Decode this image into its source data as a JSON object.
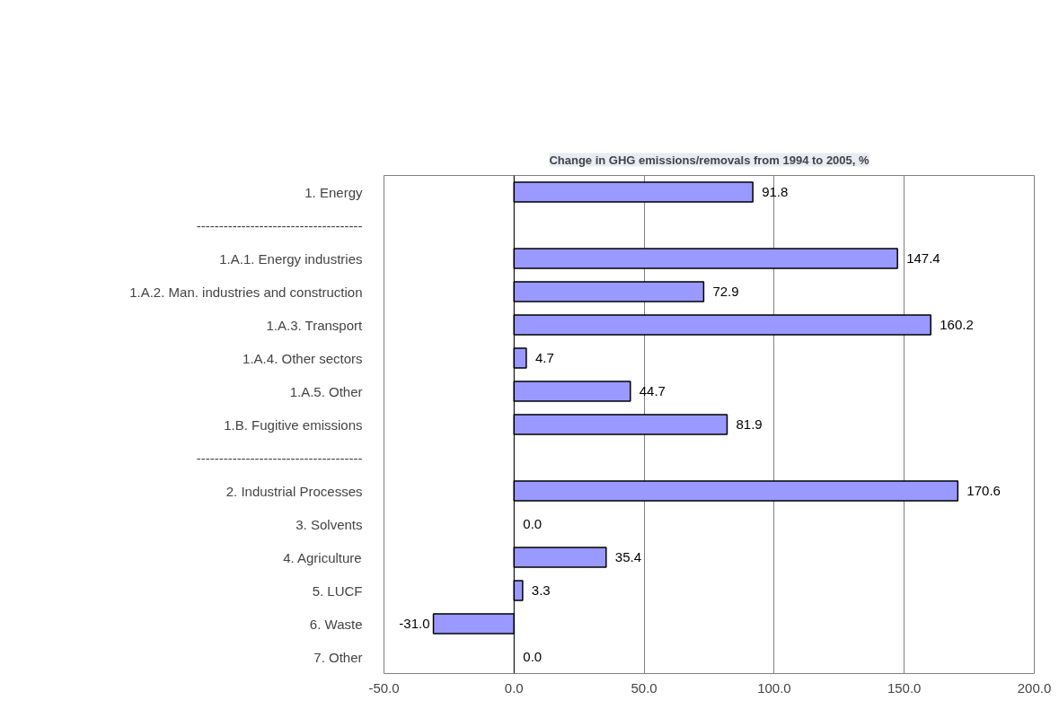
{
  "chart_data": {
    "type": "bar",
    "orientation": "horizontal",
    "title": "Change in GHG emissions/removals from 1994 to 2005, %",
    "categories": [
      "1. Energy",
      "-------------------------------------",
      "1.A.1. Energy industries",
      "1.A.2. Man. industries and construction",
      "1.A.3. Transport",
      "1.A.4. Other sectors",
      "1.A.5. Other",
      "1.B. Fugitive emissions",
      "-------------------------------------",
      "2. Industrial Processes",
      "3. Solvents",
      "4. Agriculture",
      "5. LUCF",
      "6. Waste",
      "7. Other"
    ],
    "values": [
      91.8,
      null,
      147.4,
      72.9,
      160.2,
      4.7,
      44.7,
      81.9,
      null,
      170.6,
      0.0,
      35.4,
      3.3,
      -31.0,
      0.0
    ],
    "value_labels": [
      "91.8",
      null,
      "147.4",
      "72.9",
      "160.2",
      "4.7",
      "44.7",
      "81.9",
      null,
      "170.6",
      "0.0",
      "35.4",
      "3.3",
      "-31.0",
      "0.0"
    ],
    "color": "#9999ff",
    "xlim": [
      -50,
      200
    ],
    "xticks": [
      {
        "value": -50,
        "label": "-50.0"
      },
      {
        "value": 0,
        "label": "0.0"
      },
      {
        "value": 50,
        "label": "50.0"
      },
      {
        "value": 100,
        "label": "100.0"
      },
      {
        "value": 150,
        "label": "150.0"
      },
      {
        "value": 200,
        "label": "200.0"
      }
    ],
    "grid": "x"
  }
}
